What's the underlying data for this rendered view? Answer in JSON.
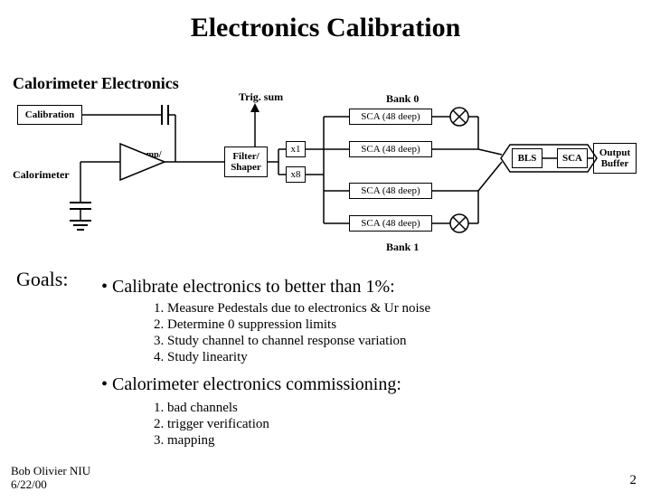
{
  "title": "Electronics Calibration",
  "subtitle": "Calorimeter Electronics",
  "diagram": {
    "trig_sum": "Trig. sum",
    "bank0": "Bank 0",
    "bank1": "Bank 1",
    "calibration": "Calibration",
    "calorimeter": "Calorimeter",
    "preamp": "Preamp/\nDriver",
    "filter": "Filter/\nShaper",
    "x1": "x1",
    "x8": "x8",
    "sca": "SCA (48 deep)",
    "bls": "BLS",
    "scab": "SCA",
    "output_buffer": "Output\nBuffer",
    "colors": {
      "line": "#000000",
      "bg": "#ffffff"
    }
  },
  "goals_label": "Goals:",
  "bullet1": "• Calibrate electronics to better than 1%:",
  "list1": [
    "1. Measure Pedestals due to electronics & Ur noise",
    "2. Determine 0 suppression limits",
    "3. Study channel to channel response variation",
    "4. Study linearity"
  ],
  "bullet2": "• Calorimeter electronics commissioning:",
  "list2": [
    "1. bad channels",
    "2. trigger verification",
    "3. mapping"
  ],
  "footer_line1": "Bob Olivier NIU",
  "footer_line2": "6/22/00",
  "page_number": "2"
}
